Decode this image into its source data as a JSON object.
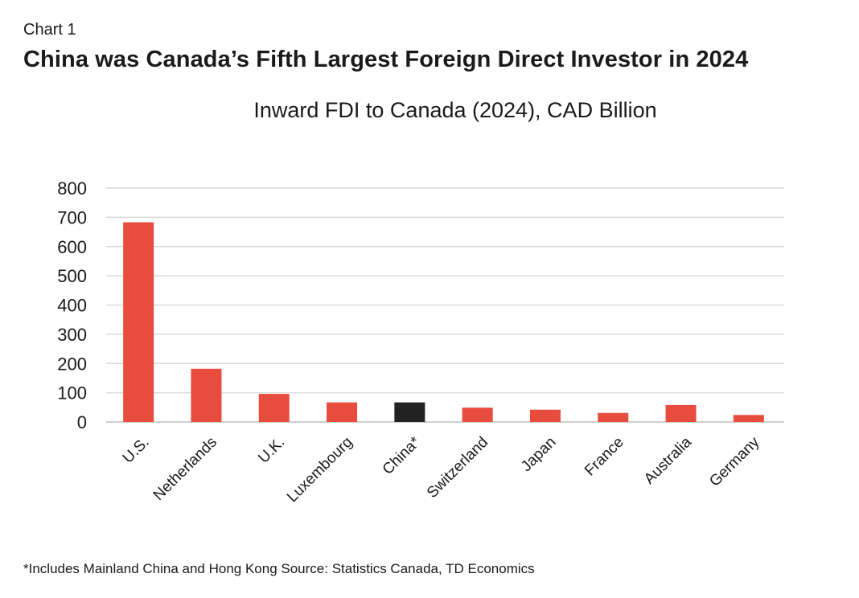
{
  "header": {
    "chart_number": "Chart 1",
    "title": "China was Canada’s Fifth Largest Foreign Direct Investor in 2024"
  },
  "footnote": "*Includes Mainland China and Hong Kong Source: Statistics Canada, TD Economics",
  "colors": {
    "default_bar": "#e84c3d",
    "highlight_bar": "#222222",
    "gridline": "#d9d9d9",
    "axis": "#bfbfbf"
  },
  "chart_data": {
    "type": "bar",
    "title": "Inward FDI to Canada (2024), CAD Billion",
    "xlabel": "",
    "ylabel": "",
    "ylim": [
      0,
      800
    ],
    "yticks": [
      0,
      100,
      200,
      300,
      400,
      500,
      600,
      700,
      800
    ],
    "grid": true,
    "categories": [
      "U.S.",
      "Netherlands",
      "U.K.",
      "Luxembourg",
      "China*",
      "Switzerland",
      "Japan",
      "France",
      "Australia",
      "Germany"
    ],
    "values": [
      683,
      182,
      96,
      67,
      67,
      49,
      42,
      31,
      58,
      24
    ],
    "highlight": "China*"
  }
}
